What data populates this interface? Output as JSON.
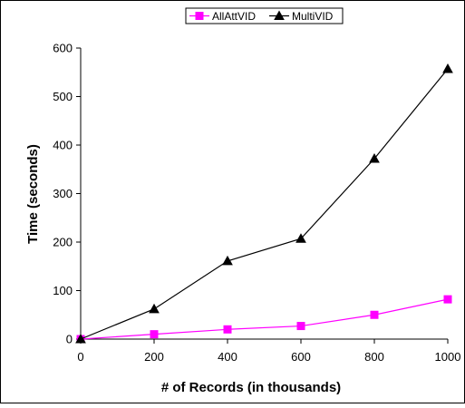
{
  "chart_data": {
    "type": "line",
    "title": "",
    "xlabel": "# of Records (in thousands)",
    "ylabel": "Time (seconds)",
    "xlim": [
      0,
      1000
    ],
    "ylim": [
      0,
      600
    ],
    "x_ticks": [
      0,
      200,
      400,
      600,
      800,
      1000
    ],
    "y_ticks": [
      0,
      100,
      200,
      300,
      400,
      500,
      600
    ],
    "grid": false,
    "legend_position": "top-center",
    "x": [
      0,
      200,
      400,
      600,
      800,
      1000
    ],
    "series": [
      {
        "name": "AllAttVID",
        "values": [
          0,
          10,
          20,
          27,
          50,
          82
        ],
        "color": "#ff00ff",
        "marker": "square"
      },
      {
        "name": "MultiVID",
        "values": [
          0,
          62,
          161,
          207,
          372,
          557
        ],
        "color": "#000000",
        "marker": "triangle"
      }
    ]
  }
}
